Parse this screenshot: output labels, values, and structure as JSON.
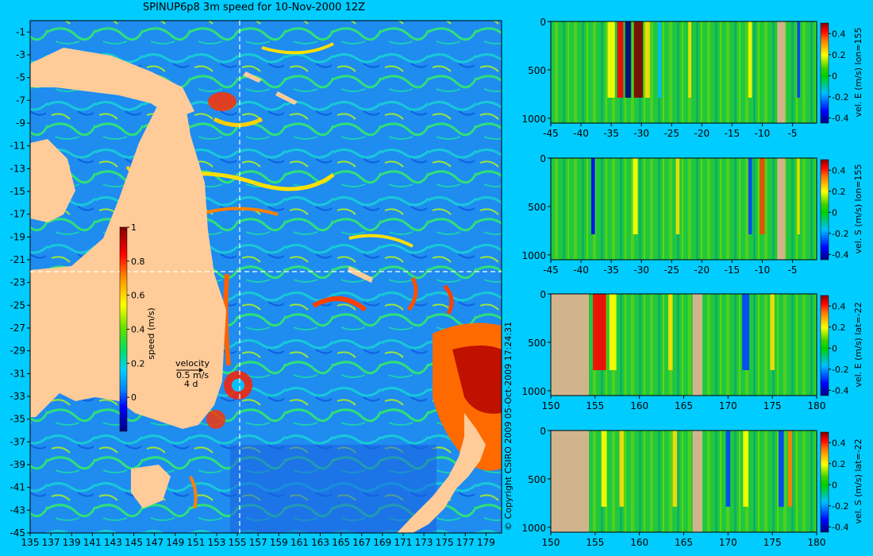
{
  "title": "SPINUP6p8 3m speed for 10-Nov-2000 12Z",
  "copyright": "© Copyright CSIRO 2009   05-Oct-2009 17:24:31",
  "colors": {
    "background": "#00ccff",
    "land": "#ffcc99",
    "bathymetry_mask": "#d2b48c",
    "section_line": "#ffffff"
  },
  "map": {
    "type": "heatmap",
    "field": "3m speed",
    "x_ticks": [
      "135",
      "137",
      "139",
      "141",
      "143",
      "145",
      "147",
      "149",
      "151",
      "153",
      "155",
      "157",
      "159",
      "161",
      "163",
      "165",
      "167",
      "169",
      "171",
      "173",
      "175",
      "177",
      "179"
    ],
    "y_ticks": [
      "-1",
      "-3",
      "-5",
      "-7",
      "-9",
      "-11",
      "-13",
      "-15",
      "-17",
      "-19",
      "-21",
      "-23",
      "-25",
      "-27",
      "-29",
      "-31",
      "-33",
      "-35",
      "-37",
      "-39",
      "-41",
      "-43",
      "-45"
    ],
    "section_lon": 155,
    "section_lat": -22,
    "colorbar": {
      "label": "speed (m/s)",
      "ticks": [
        "1",
        "0.8",
        "0.6",
        "0.4",
        "0.2",
        "0"
      ],
      "range": [
        -0.2,
        1
      ]
    },
    "velocity_key": {
      "title": "velocity",
      "speed": "0.5 m/s",
      "duration": "4 d"
    }
  },
  "chart_data": [
    {
      "type": "heatmap",
      "panel": "east-velocity-lon155",
      "colorbar_label": "vel. E (m/s) lon=155",
      "colorbar_ticks": [
        "0.4",
        "0.2",
        "0",
        "-0.2",
        "-0.4"
      ],
      "colorbar_range": [
        -0.45,
        0.5
      ],
      "x_ticks": [
        "-45",
        "-40",
        "-35",
        "-30",
        "-25",
        "-20",
        "-15",
        "-10",
        "-5"
      ],
      "y_ticks": [
        "0",
        "500",
        "1000"
      ],
      "xlim": [
        -45,
        -1
      ],
      "ylim": [
        1050,
        0
      ]
    },
    {
      "type": "heatmap",
      "panel": "south-velocity-lon155",
      "colorbar_label": "vel. S (m/s) lon=155",
      "colorbar_ticks": [
        "0.4",
        "0.2",
        "0",
        "-0.2",
        "-0.4"
      ],
      "colorbar_range": [
        -0.45,
        0.5
      ],
      "x_ticks": [
        "-45",
        "-40",
        "-35",
        "-30",
        "-25",
        "-20",
        "-15",
        "-10",
        "-5"
      ],
      "y_ticks": [
        "0",
        "500",
        "1000"
      ],
      "xlim": [
        -45,
        -1
      ],
      "ylim": [
        1050,
        0
      ]
    },
    {
      "type": "heatmap",
      "panel": "east-velocity-lat-22",
      "colorbar_label": "vel. E (m/s) lat=-22",
      "colorbar_ticks": [
        "0.4",
        "0.2",
        "0",
        "-0.2",
        "-0.4"
      ],
      "colorbar_range": [
        -0.45,
        0.5
      ],
      "x_ticks": [
        "150",
        "155",
        "160",
        "165",
        "170",
        "175",
        "180"
      ],
      "y_ticks": [
        "0",
        "500",
        "1000"
      ],
      "xlim": [
        150,
        180
      ],
      "ylim": [
        1050,
        0
      ]
    },
    {
      "type": "heatmap",
      "panel": "south-velocity-lat-22",
      "colorbar_label": "vel. S (m/s) lat=-22",
      "colorbar_ticks": [
        "0.4",
        "0.2",
        "0",
        "-0.2",
        "-0.4"
      ],
      "colorbar_range": [
        -0.45,
        0.5
      ],
      "x_ticks": [
        "150",
        "155",
        "160",
        "165",
        "170",
        "175",
        "180"
      ],
      "y_ticks": [
        "0",
        "500",
        "1000"
      ],
      "xlim": [
        150,
        180
      ],
      "ylim": [
        1050,
        0
      ]
    }
  ]
}
